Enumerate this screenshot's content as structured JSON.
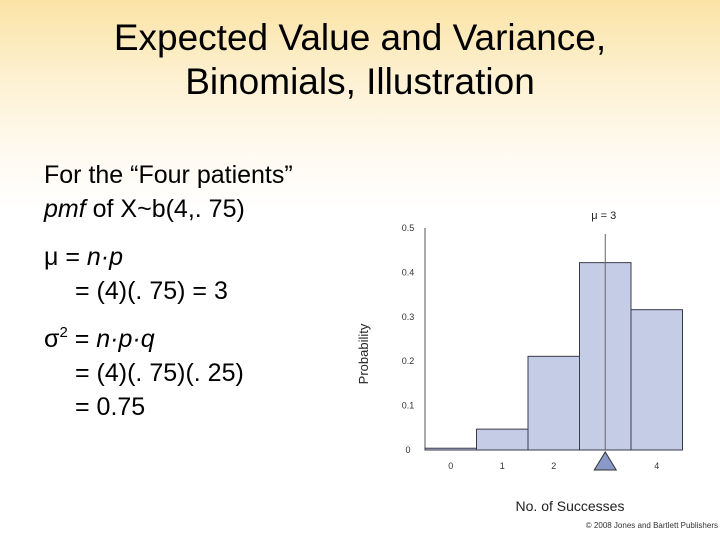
{
  "slide": {
    "title_line1": "Expected Value and Variance,",
    "title_line2": "Binomials, Illustration",
    "lines": {
      "l1": "For the “Four patients”",
      "l2_pmf": "pmf",
      "l2_rest": " of X~b(4,. 75)",
      "mu_sym": "μ",
      "mu_eq": " = ",
      "mu_np": "n·p",
      "mu_line2": "= (4)(. 75) = 3",
      "sigma_sym": "σ",
      "sigma_sup": "2",
      "sigma_eq": " = ",
      "sigma_npq": "n·p·q",
      "sigma_line2": "= (4)(. 75)(. 25)",
      "sigma_line3": "= 0.75"
    },
    "copyright": "© 2008 Jones and Bartlett Publishers"
  },
  "chart_data": {
    "type": "bar",
    "categories": [
      "0",
      "1",
      "2",
      "3",
      "4"
    ],
    "values": [
      0.004,
      0.047,
      0.211,
      0.422,
      0.316
    ],
    "xlabel": "No. of Successes",
    "ylabel": "Probability",
    "ylim": [
      0,
      0.5
    ],
    "yticks": [
      "0",
      "0.1",
      "0.2",
      "0.3",
      "0.4",
      "0.5"
    ],
    "mean_value": 3,
    "mean_label": "μ = 3",
    "bar_color": "#c5cde6",
    "bar_edge_color": "#3a3a4a",
    "marker_color": "#8a9ac8",
    "grid": false
  }
}
